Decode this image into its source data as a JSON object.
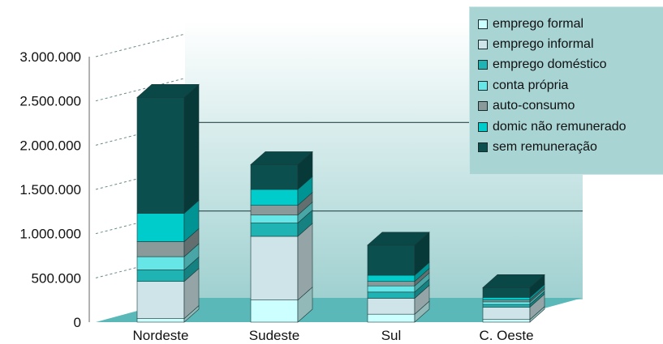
{
  "chart_data": {
    "type": "bar",
    "stacked": true,
    "three_d": true,
    "categories": [
      "Nordeste",
      "Sudeste",
      "Sul",
      "C. Oeste"
    ],
    "series": [
      {
        "name": "emprego formal",
        "color": "#ccffff",
        "values": [
          40000,
          250000,
          90000,
          30000
        ]
      },
      {
        "name": "emprego informal",
        "color": "#cfe4e8",
        "values": [
          420000,
          720000,
          180000,
          140000
        ]
      },
      {
        "name": "emprego doméstico",
        "color": "#1fb3b3",
        "values": [
          130000,
          150000,
          70000,
          30000
        ]
      },
      {
        "name": "conta própria",
        "color": "#66e6e6",
        "values": [
          150000,
          90000,
          70000,
          30000
        ]
      },
      {
        "name": "auto-consumo",
        "color": "#8a9a9a",
        "values": [
          170000,
          110000,
          50000,
          20000
        ]
      },
      {
        "name": "domic não remunerado",
        "color": "#00cccc",
        "values": [
          320000,
          180000,
          70000,
          30000
        ]
      },
      {
        "name": "sem remuneração",
        "color": "#0b4f4f",
        "values": [
          1310000,
          280000,
          340000,
          110000
        ]
      }
    ],
    "y_ticks": [
      "0",
      "500.000",
      "1.000.000",
      "1.500.000",
      "2.000.000",
      "2.500.000",
      "3.000.000"
    ],
    "ylim": [
      0,
      3000000
    ],
    "grid": true,
    "legend_position": "top-right",
    "title": "",
    "xlabel": "",
    "ylabel": ""
  },
  "colors": {
    "wall": "#c9e6e6",
    "floor": "#5bb8b8",
    "gridline": "#2a4a4a"
  }
}
